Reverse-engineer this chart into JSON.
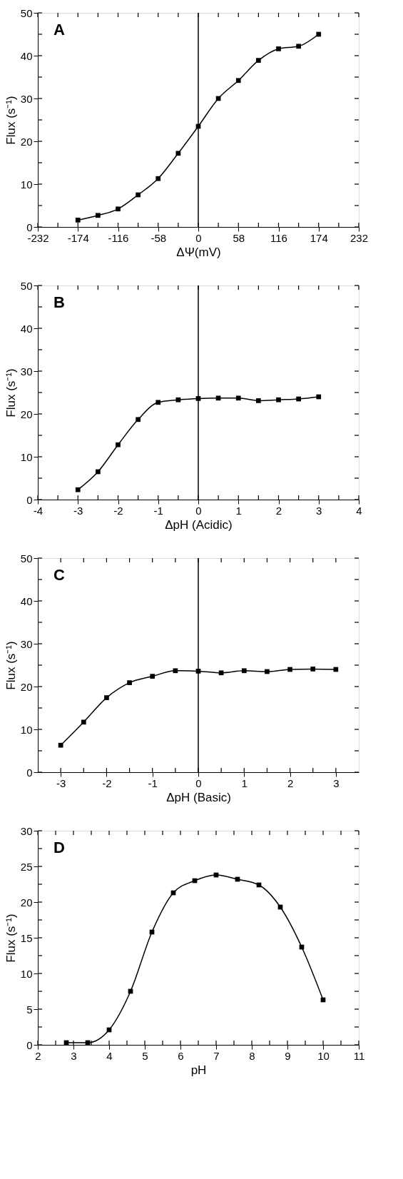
{
  "chart_data": [
    {
      "type": "line",
      "xlabel": "ΔΨ(mV)",
      "ylabel": "Flux (s⁻¹)",
      "annotations": [
        "A"
      ],
      "marker": "square",
      "line_style": "solid",
      "grid": false,
      "x": [
        -174,
        -145,
        -116,
        -87,
        -58,
        -29,
        0,
        29,
        58,
        87,
        116,
        145,
        174
      ],
      "series": [
        {
          "color": "#000000",
          "values": [
            1.6,
            2.7,
            4.2,
            7.5,
            11.3,
            17.2,
            23.5,
            30.0,
            34.2,
            38.9,
            41.6,
            42.2,
            45.0
          ]
        }
      ],
      "xlim": [
        -232,
        232
      ],
      "xticks": [
        -232,
        {
          "value": -203,
          "label": null
        },
        -174,
        {
          "value": -145,
          "label": null
        },
        -116,
        {
          "value": -87,
          "label": null
        },
        -58,
        {
          "value": -29,
          "label": null
        },
        0,
        {
          "value": 29,
          "label": null
        },
        58,
        {
          "value": 87,
          "label": null
        },
        116,
        {
          "value": 145,
          "label": null
        },
        174,
        {
          "value": 203,
          "label": null
        },
        232
      ],
      "ylim": [
        0,
        50
      ],
      "yticks": [
        0,
        {
          "value": 5,
          "label": null
        },
        10,
        {
          "value": 15,
          "label": null
        },
        20,
        {
          "value": 25,
          "label": null
        },
        30,
        {
          "value": 35,
          "label": null
        },
        40,
        {
          "value": 45,
          "label": null
        },
        50
      ],
      "ref_lines": [
        {
          "axis": "x",
          "value": 0,
          "color": "#000000"
        }
      ]
    },
    {
      "type": "line",
      "xlabel": "ΔpH (Acidic)",
      "ylabel": "Flux (s⁻¹)",
      "annotations": [
        "B"
      ],
      "marker": "square",
      "line_style": "solid",
      "grid": false,
      "x": [
        -3,
        -2.5,
        -2,
        -1.5,
        -1,
        -0.5,
        0,
        0.5,
        1,
        1.5,
        2,
        2.5,
        3
      ],
      "series": [
        {
          "color": "#000000",
          "values": [
            2.3,
            6.5,
            12.8,
            18.7,
            22.7,
            23.3,
            23.6,
            23.7,
            23.7,
            23.1,
            23.3,
            23.5,
            24.0
          ]
        }
      ],
      "xlim": [
        -4,
        4
      ],
      "xticks": [
        -4,
        {
          "value": -3.5,
          "label": null
        },
        -3,
        {
          "value": -2.5,
          "label": null
        },
        -2,
        {
          "value": -1.5,
          "label": null
        },
        -1,
        {
          "value": -0.5,
          "label": null
        },
        0,
        {
          "value": 0.5,
          "label": null
        },
        1,
        {
          "value": 1.5,
          "label": null
        },
        2,
        {
          "value": 2.5,
          "label": null
        },
        3,
        {
          "value": 3.5,
          "label": null
        },
        4
      ],
      "ylim": [
        0,
        50
      ],
      "yticks": [
        0,
        {
          "value": 5,
          "label": null
        },
        10,
        {
          "value": 15,
          "label": null
        },
        20,
        {
          "value": 25,
          "label": null
        },
        30,
        {
          "value": 35,
          "label": null
        },
        40,
        {
          "value": 45,
          "label": null
        },
        50
      ],
      "ref_lines": [
        {
          "axis": "x",
          "value": 0,
          "color": "#000000"
        }
      ]
    },
    {
      "type": "line",
      "xlabel": "ΔpH (Basic)",
      "ylabel": "Flux (s⁻¹)",
      "annotations": [
        "C"
      ],
      "marker": "square",
      "line_style": "solid",
      "grid": false,
      "x": [
        -3,
        -2.5,
        -2,
        -1.5,
        -1,
        -0.5,
        0,
        0.5,
        1,
        1.5,
        2,
        2.5,
        3
      ],
      "series": [
        {
          "color": "#000000",
          "values": [
            6.3,
            11.7,
            17.4,
            20.9,
            22.4,
            23.7,
            23.6,
            23.2,
            23.7,
            23.5,
            24.0,
            24.1,
            24.0
          ]
        }
      ],
      "xlim": [
        -3.5,
        3.5
      ],
      "xticks": [
        -3,
        {
          "value": -2.5,
          "label": null
        },
        -2,
        {
          "value": -1.5,
          "label": null
        },
        -1,
        {
          "value": -0.5,
          "label": null
        },
        0,
        {
          "value": 0.5,
          "label": null
        },
        1,
        {
          "value": 1.5,
          "label": null
        },
        2,
        {
          "value": 2.5,
          "label": null
        },
        3
      ],
      "ylim": [
        0,
        50
      ],
      "yticks": [
        0,
        {
          "value": 5,
          "label": null
        },
        10,
        {
          "value": 15,
          "label": null
        },
        20,
        {
          "value": 25,
          "label": null
        },
        30,
        {
          "value": 35,
          "label": null
        },
        40,
        {
          "value": 45,
          "label": null
        },
        50
      ],
      "ref_lines": [
        {
          "axis": "x",
          "value": 0,
          "color": "#000000"
        }
      ]
    },
    {
      "type": "line",
      "xlabel": "pH",
      "ylabel": "Flux (s⁻¹)",
      "annotations": [
        "D"
      ],
      "marker": "square",
      "line_style": "solid",
      "grid": false,
      "x": [
        2.8,
        3.4,
        4.0,
        4.6,
        5.2,
        5.8,
        6.4,
        7.0,
        7.6,
        8.2,
        8.8,
        9.4,
        10.0
      ],
      "series": [
        {
          "color": "#000000",
          "values": [
            0.3,
            0.3,
            2.1,
            7.5,
            15.8,
            21.3,
            23.0,
            23.8,
            23.2,
            22.4,
            19.3,
            13.7,
            6.3
          ]
        }
      ],
      "xlim": [
        2,
        11
      ],
      "xticks": [
        2,
        {
          "value": 2.5,
          "label": null
        },
        3,
        {
          "value": 3.5,
          "label": null
        },
        4,
        {
          "value": 4.5,
          "label": null
        },
        5,
        {
          "value": 5.5,
          "label": null
        },
        6,
        {
          "value": 6.5,
          "label": null
        },
        7,
        {
          "value": 7.5,
          "label": null
        },
        8,
        {
          "value": 8.5,
          "label": null
        },
        9,
        {
          "value": 9.5,
          "label": null
        },
        10,
        {
          "value": 10.5,
          "label": null
        },
        11
      ],
      "ylim": [
        0,
        30
      ],
      "yticks": [
        0,
        {
          "value": 2.5,
          "label": null
        },
        5,
        {
          "value": 7.5,
          "label": null
        },
        10,
        {
          "value": 12.5,
          "label": null
        },
        15,
        {
          "value": 17.5,
          "label": null
        },
        20,
        {
          "value": 22.5,
          "label": null
        },
        25,
        {
          "value": 27.5,
          "label": null
        },
        30
      ]
    }
  ]
}
